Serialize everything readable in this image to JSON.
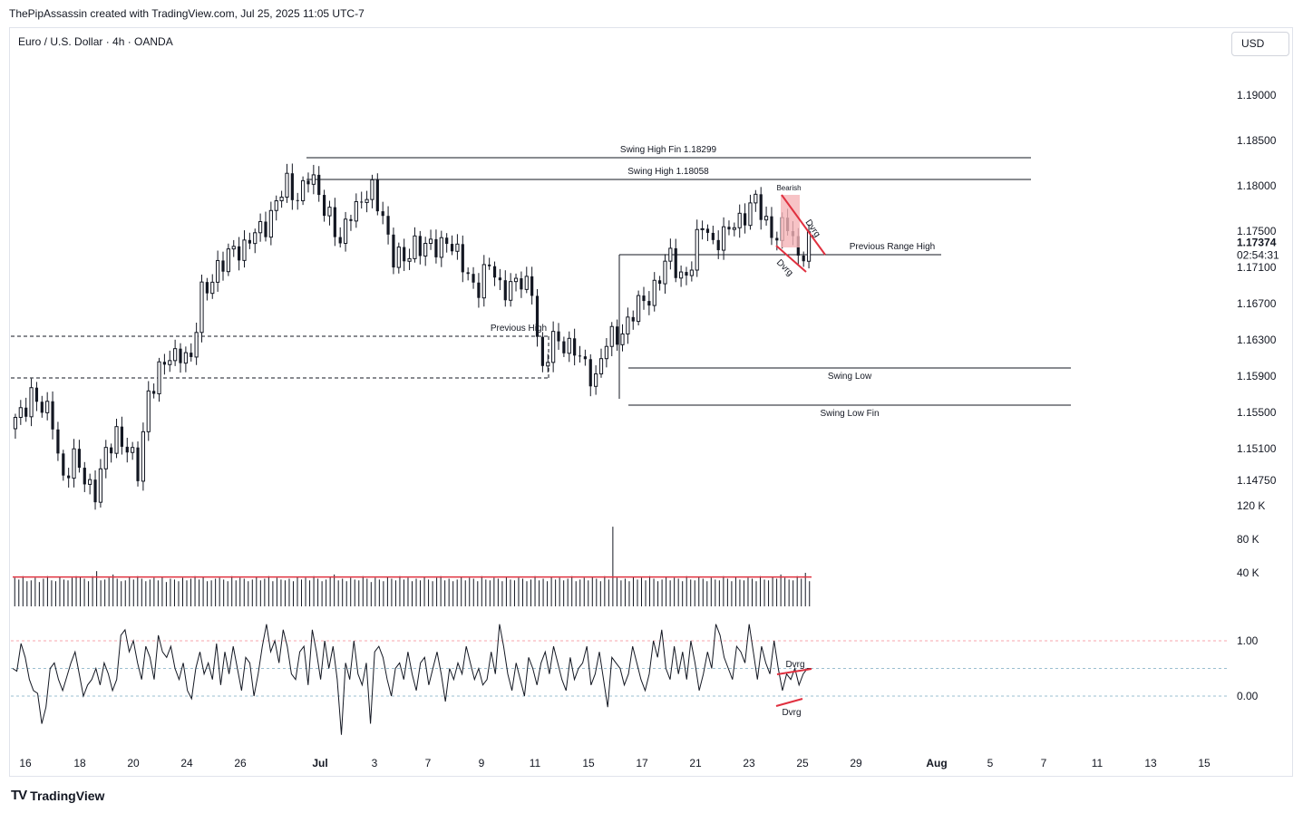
{
  "header": {
    "caption": "ThePipAssassin created with TradingView.com, Jul 25, 2025 11:05 UTC-7",
    "symbol": "Euro / U.S. Dollar · 4h · OANDA",
    "currency_button": "USD"
  },
  "footer": {
    "brand": "TradingView",
    "logo": "TV"
  },
  "colors": {
    "bull": "#131722",
    "bear": "#131722",
    "accent_red": "#e0303f",
    "highlight": "#f5b4b8",
    "volume": "#131722",
    "osc_upper": "#f7a6ad",
    "osc_lower": "#9bbfd0"
  },
  "chart_data": [
    {
      "type": "candlestick",
      "timeframe": "4h",
      "price_axis": {
        "ticks": [
          "1.19000",
          "1.18500",
          "1.18000",
          "1.17500",
          "1.16700",
          "1.16300",
          "1.15900",
          "1.15500",
          "1.15100",
          "1.14750"
        ],
        "tick_values": [
          1.19,
          1.185,
          1.18,
          1.175,
          1.167,
          1.163,
          1.159,
          1.155,
          1.151,
          1.1475
        ],
        "last_price": "1.17374",
        "countdown": "02:54:31",
        "hidden_tick": "1.17100"
      },
      "time_axis": {
        "labels": [
          "16",
          "18",
          "20",
          "24",
          "26",
          "Jul",
          "3",
          "7",
          "9",
          "11",
          "15",
          "17",
          "21",
          "23",
          "25",
          "29",
          "Aug",
          "5",
          "7",
          "11",
          "13",
          "15"
        ],
        "bold": [
          "Jul",
          "Aug"
        ]
      },
      "close_path": [
        [
          0,
          1.1532
        ],
        [
          6,
          1.1545
        ],
        [
          12,
          1.1575
        ],
        [
          18,
          1.1552
        ],
        [
          24,
          1.154
        ],
        [
          30,
          1.1478
        ],
        [
          36,
          1.1495
        ],
        [
          42,
          1.148
        ],
        [
          48,
          1.1462
        ],
        [
          54,
          1.15
        ],
        [
          60,
          1.153
        ],
        [
          66,
          1.151
        ],
        [
          72,
          1.148
        ],
        [
          78,
          1.1575
        ],
        [
          84,
          1.1592
        ],
        [
          90,
          1.161
        ],
        [
          96,
          1.162
        ],
        [
          102,
          1.1602
        ],
        [
          108,
          1.1685
        ],
        [
          114,
          1.17
        ],
        [
          120,
          1.171
        ],
        [
          126,
          1.1735
        ],
        [
          132,
          1.173
        ],
        [
          138,
          1.1745
        ],
        [
          144,
          1.176
        ],
        [
          150,
          1.178
        ],
        [
          156,
          1.18
        ],
        [
          162,
          1.179
        ],
        [
          168,
          1.1808
        ],
        [
          174,
          1.179
        ],
        [
          180,
          1.177
        ],
        [
          186,
          1.173
        ],
        [
          192,
          1.1775
        ],
        [
          198,
          1.1785
        ],
        [
          204,
          1.179
        ],
        [
          210,
          1.177
        ],
        [
          216,
          1.172
        ],
        [
          222,
          1.1715
        ],
        [
          228,
          1.174
        ],
        [
          234,
          1.173
        ],
        [
          240,
          1.173
        ],
        [
          246,
          1.1745
        ],
        [
          252,
          1.172
        ],
        [
          258,
          1.17
        ],
        [
          264,
          1.169
        ],
        [
          270,
          1.171
        ],
        [
          276,
          1.169
        ],
        [
          282,
          1.169
        ],
        [
          288,
          1.169
        ],
        [
          294,
          1.169
        ],
        [
          300,
          1.159
        ],
        [
          306,
          1.163
        ],
        [
          312,
          1.163
        ],
        [
          318,
          1.1615
        ],
        [
          324,
          1.16
        ],
        [
          330,
          1.159
        ],
        [
          336,
          1.1625
        ],
        [
          342,
          1.1635
        ],
        [
          348,
          1.165
        ],
        [
          354,
          1.1665
        ],
        [
          360,
          1.168
        ],
        [
          366,
          1.17
        ],
        [
          372,
          1.172
        ],
        [
          378,
          1.1702
        ],
        [
          384,
          1.171
        ],
        [
          390,
          1.176
        ],
        [
          396,
          1.174
        ],
        [
          402,
          1.174
        ],
        [
          408,
          1.176
        ],
        [
          414,
          1.177
        ],
        [
          420,
          1.178
        ],
        [
          426,
          1.176
        ],
        [
          432,
          1.1745
        ],
        [
          438,
          1.1755
        ],
        [
          444,
          1.1725
        ],
        [
          450,
          1.1737
        ]
      ],
      "candles": [
        [
          1.1525,
          1.1545,
          1.1515,
          1.1535
        ],
        [
          1.1535,
          1.156,
          1.153,
          1.1545
        ],
        [
          1.1545,
          1.159,
          1.154,
          1.1575
        ],
        [
          1.1575,
          1.158,
          1.153,
          1.154
        ],
        [
          1.154,
          1.157,
          1.153,
          1.1552
        ],
        [
          1.1552,
          1.156,
          1.152,
          1.154
        ],
        [
          1.154,
          1.1545,
          1.147,
          1.1478
        ],
        [
          1.1478,
          1.15,
          1.1465,
          1.1495
        ],
        [
          1.1495,
          1.1505,
          1.1475,
          1.148
        ],
        [
          1.148,
          1.15,
          1.145,
          1.1462
        ],
        [
          1.1462,
          1.1505,
          1.1455,
          1.15
        ],
        [
          1.15,
          1.154,
          1.1495,
          1.153
        ],
        [
          1.153,
          1.1535,
          1.15,
          1.151
        ],
        [
          1.151,
          1.152,
          1.147,
          1.148
        ],
        [
          1.148,
          1.1585,
          1.1475,
          1.1575
        ],
        [
          1.1575,
          1.16,
          1.1565,
          1.1592
        ],
        [
          1.1592,
          1.162,
          1.1585,
          1.161
        ],
        [
          1.161,
          1.1635,
          1.16,
          1.162
        ],
        [
          1.162,
          1.1628,
          1.1595,
          1.1602
        ],
        [
          1.1602,
          1.169,
          1.1598,
          1.1685
        ],
        [
          1.1685,
          1.171,
          1.168,
          1.17
        ],
        [
          1.17,
          1.172,
          1.169,
          1.171
        ],
        [
          1.171,
          1.1745,
          1.1705,
          1.1735
        ],
        [
          1.1735,
          1.174,
          1.172,
          1.173
        ],
        [
          1.173,
          1.175,
          1.1722,
          1.1745
        ],
        [
          1.1745,
          1.177,
          1.174,
          1.176
        ],
        [
          1.176,
          1.179,
          1.1755,
          1.178
        ],
        [
          1.178,
          1.1805,
          1.1775,
          1.18
        ],
        [
          1.18,
          1.1805,
          1.178,
          1.179
        ],
        [
          1.179,
          1.183,
          1.1785,
          1.1808
        ],
        [
          1.1808,
          1.1812,
          1.1785,
          1.179
        ],
        [
          1.179,
          1.1795,
          1.1762,
          1.177
        ],
        [
          1.177,
          1.1775,
          1.1722,
          1.173
        ],
        [
          1.173,
          1.178,
          1.1725,
          1.1775
        ],
        [
          1.1775,
          1.179,
          1.177,
          1.1785
        ],
        [
          1.1785,
          1.1806,
          1.178,
          1.179
        ],
        [
          1.179,
          1.1795,
          1.1765,
          1.177
        ],
        [
          1.177,
          1.1772,
          1.1715,
          1.172
        ],
        [
          1.172,
          1.1725,
          1.1705,
          1.1715
        ],
        [
          1.1715,
          1.1745,
          1.171,
          1.174
        ],
        [
          1.174,
          1.1748,
          1.1725,
          1.173
        ],
        [
          1.173,
          1.174,
          1.1722,
          1.173
        ],
        [
          1.173,
          1.175,
          1.1725,
          1.1745
        ],
        [
          1.1745,
          1.1748,
          1.1715,
          1.172
        ],
        [
          1.172,
          1.1725,
          1.1695,
          1.17
        ],
        [
          1.17,
          1.1705,
          1.1685,
          1.169
        ],
        [
          1.169,
          1.1715,
          1.1685,
          1.171
        ],
        [
          1.171,
          1.1712,
          1.1685,
          1.169
        ],
        [
          1.169,
          1.17,
          1.168,
          1.169
        ],
        [
          1.169,
          1.1702,
          1.1682,
          1.169
        ],
        [
          1.169,
          1.1698,
          1.158,
          1.159
        ],
        [
          1.159,
          1.164,
          1.158,
          1.163
        ],
        [
          1.163,
          1.1638,
          1.162,
          1.163
        ],
        [
          1.163,
          1.1635,
          1.1575,
          1.1615
        ],
        [
          1.1615,
          1.162,
          1.158,
          1.16
        ],
        [
          1.16,
          1.1605,
          1.156,
          1.159
        ],
        [
          1.159,
          1.163,
          1.1585,
          1.1625
        ],
        [
          1.1625,
          1.164,
          1.1615,
          1.1635
        ],
        [
          1.1635,
          1.1655,
          1.163,
          1.165
        ],
        [
          1.165,
          1.167,
          1.164,
          1.1665
        ],
        [
          1.1665,
          1.1685,
          1.166,
          1.168
        ],
        [
          1.168,
          1.1705,
          1.1675,
          1.17
        ],
        [
          1.17,
          1.1725,
          1.1695,
          1.172
        ],
        [
          1.172,
          1.1722,
          1.1698,
          1.1702
        ],
        [
          1.1702,
          1.1715,
          1.1695,
          1.171
        ],
        [
          1.171,
          1.177,
          1.1705,
          1.176
        ],
        [
          1.176,
          1.1765,
          1.1735,
          1.174
        ],
        [
          1.174,
          1.1748,
          1.173,
          1.174
        ],
        [
          1.174,
          1.1765,
          1.1735,
          1.176
        ],
        [
          1.176,
          1.1775,
          1.1755,
          1.177
        ],
        [
          1.177,
          1.179,
          1.1765,
          1.178
        ],
        [
          1.178,
          1.1785,
          1.1755,
          1.176
        ],
        [
          1.176,
          1.1762,
          1.1738,
          1.1745
        ],
        [
          1.1745,
          1.1762,
          1.174,
          1.1755
        ],
        [
          1.1755,
          1.1758,
          1.1718,
          1.1725
        ],
        [
          1.1725,
          1.1742,
          1.172,
          1.1737
        ]
      ],
      "levels": [
        {
          "label": "Swing High Fin 1.18299",
          "price": 1.18299
        },
        {
          "label": "Swing High 1.18058",
          "price": 1.18058
        },
        {
          "label": "Previous Range High",
          "price": 1.1726
        },
        {
          "label": "Swing Low",
          "price": 1.1596
        },
        {
          "label": "Swing Low Fin",
          "price": 1.1555
        }
      ],
      "zone": {
        "label": "Previous High",
        "top": 1.163,
        "bottom": 1.1584
      },
      "annotations": [
        "Bearish",
        "Dvrg",
        "Dvrg"
      ]
    },
    {
      "type": "bar",
      "name": "volume",
      "ticks": [
        "120 K",
        "80 K",
        "40 K"
      ],
      "tick_values": [
        120,
        80,
        40
      ],
      "ma_value": 35,
      "values": [
        34,
        32,
        36,
        30,
        31,
        34,
        29,
        33,
        36,
        31,
        30,
        35,
        32,
        31,
        34,
        36,
        35,
        33,
        30,
        36,
        42,
        31,
        32,
        34,
        38,
        33,
        30,
        31,
        35,
        32,
        36,
        33,
        30,
        32,
        34,
        31,
        35,
        29,
        33,
        32,
        30,
        34,
        31,
        33,
        36,
        32,
        35,
        30,
        31,
        33,
        34,
        32,
        30,
        36,
        31,
        34,
        33,
        30,
        32,
        35,
        31,
        33,
        36,
        30,
        34,
        32,
        31,
        33,
        30,
        35,
        32,
        34,
        31,
        36,
        33,
        30,
        32,
        35,
        38,
        31,
        33,
        30,
        34,
        32,
        31,
        36,
        33,
        29,
        34,
        32,
        30,
        35,
        33,
        31,
        36,
        32,
        34,
        30,
        33,
        31,
        35,
        32,
        30,
        34,
        36,
        31,
        33,
        30,
        32,
        35,
        31,
        34,
        33,
        30,
        36,
        32,
        31,
        34,
        33,
        30,
        35,
        32,
        31,
        34,
        33,
        30,
        32,
        36,
        31,
        33,
        30,
        35,
        32,
        34,
        31,
        33,
        36,
        30,
        32,
        34,
        31,
        35,
        33,
        30,
        36,
        32,
        95,
        34,
        31,
        33,
        30,
        35,
        32,
        34,
        31,
        36,
        33,
        30,
        32,
        35,
        31,
        34,
        33,
        30,
        36,
        32,
        31,
        35,
        33,
        30,
        34,
        32,
        31,
        36,
        33,
        30,
        35,
        32,
        31,
        34,
        33,
        30,
        36,
        32,
        31,
        35,
        33,
        38,
        34,
        32,
        31,
        36,
        33,
        40,
        30
      ]
    },
    {
      "type": "line",
      "name": "oscillator",
      "ticks": [
        "1.00",
        "0.00"
      ],
      "tick_values": [
        1.0,
        0.0
      ],
      "upper_band": 1.0,
      "mid_band": 0.5,
      "lower_band": 0.0,
      "values": [
        0.5,
        0.45,
        0.95,
        0.7,
        0.3,
        0.1,
        0.05,
        -0.5,
        -0.2,
        0.5,
        0.6,
        0.3,
        0.1,
        0.35,
        0.6,
        0.8,
        0.4,
        0.0,
        0.2,
        0.3,
        0.5,
        0.2,
        0.6,
        0.4,
        0.1,
        0.3,
        1.1,
        1.2,
        0.8,
        1.0,
        0.6,
        0.3,
        0.9,
        0.7,
        0.3,
        1.1,
        0.8,
        0.7,
        0.9,
        0.5,
        0.3,
        0.6,
        0.1,
        -0.05,
        0.5,
        0.8,
        0.4,
        0.6,
        0.3,
        0.95,
        0.2,
        0.8,
        0.4,
        0.9,
        0.5,
        0.1,
        0.7,
        0.6,
        0.0,
        0.4,
        0.9,
        1.3,
        0.8,
        1.0,
        0.6,
        1.2,
        0.9,
        0.4,
        0.3,
        0.8,
        0.9,
        0.2,
        1.2,
        0.8,
        0.3,
        1.0,
        0.5,
        0.9,
        0.3,
        -0.7,
        0.6,
        0.3,
        1.0,
        0.4,
        0.2,
        0.6,
        -0.5,
        0.8,
        0.9,
        0.7,
        0.3,
        0.0,
        0.5,
        0.6,
        0.3,
        0.8,
        0.4,
        0.1,
        0.6,
        0.7,
        0.2,
        0.5,
        0.8,
        0.4,
        -0.1,
        0.5,
        0.3,
        0.6,
        0.4,
        0.9,
        0.6,
        0.3,
        0.5,
        0.2,
        0.3,
        0.8,
        0.4,
        1.3,
        0.9,
        0.4,
        0.1,
        0.6,
        0.3,
        0.0,
        0.7,
        0.5,
        0.2,
        0.6,
        0.8,
        0.4,
        0.9,
        0.6,
        0.3,
        0.1,
        0.7,
        0.3,
        0.5,
        0.6,
        0.9,
        0.2,
        0.4,
        0.8,
        0.3,
        -0.2,
        0.7,
        0.6,
        0.5,
        0.2,
        0.4,
        0.9,
        0.6,
        0.3,
        0.1,
        0.4,
        1.0,
        0.7,
        1.2,
        0.5,
        0.3,
        0.9,
        0.4,
        0.8,
        0.3,
        1.0,
        0.6,
        0.1,
        0.4,
        0.8,
        0.5,
        1.3,
        1.1,
        0.7,
        0.5,
        0.3,
        0.9,
        0.8,
        0.6,
        1.3,
        0.8,
        0.3,
        0.9,
        0.6,
        0.4,
        1.0,
        0.5,
        0.1,
        0.4,
        0.3,
        0.5,
        0.2,
        0.4,
        0.5,
        0.5
      ]
    }
  ]
}
